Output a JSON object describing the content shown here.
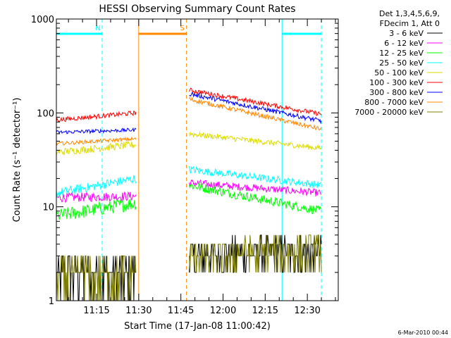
{
  "chart_data": {
    "type": "line",
    "title": "HESSI Observing Summary Count Rates",
    "xlabel": "Start Time (17-Jan-08 11:00:42)",
    "ylabel": "Count Rate (s⁻¹ detector⁻¹)",
    "y_scale": "log",
    "ylim": [
      1,
      1000
    ],
    "xlim_minutes_after_1100": [
      0.7,
      101
    ],
    "x_tick_labels": [
      "11:15",
      "11:30",
      "11:45",
      "12:00",
      "12:15",
      "12:30"
    ],
    "y_tick_labels": [
      "1",
      "10",
      "100",
      "1000"
    ],
    "legend_header": [
      "Det 1,3,4,5,6,9,",
      "FDecim 1, Att 0"
    ],
    "grid": false,
    "legend_placement": "top-right, outside plot",
    "flags": [
      {
        "letter": "N",
        "color": "#00ffff",
        "intervals": [
          [
            "11:00:42",
            "11:17"
          ],
          [
            "12:21",
            "12:35"
          ]
        ]
      },
      {
        "letter": "S",
        "color": "#ff8800",
        "intervals": [
          [
            "11:30",
            "11:47"
          ]
        ]
      }
    ],
    "flag_boundaries": [
      {
        "time": "11:17",
        "color": "#00ffff",
        "style": "dashed"
      },
      {
        "time": "11:30",
        "color": "#ff8800",
        "style": "solid"
      },
      {
        "time": "11:47",
        "color": "#ff8800",
        "style": "dashed"
      },
      {
        "time": "12:21",
        "color": "#00ffff",
        "style": "solid"
      },
      {
        "time": "12:35",
        "color": "#00ffff",
        "style": "dashed"
      }
    ],
    "series": [
      {
        "name": "3 - 6 keV",
        "color": "#000000",
        "segments": [
          {
            "x": [
              "11:00:42",
              "11:29"
            ],
            "y": [
              2,
              2
            ],
            "noise": 0.6,
            "kind": "stair"
          },
          {
            "x": [
              "11:48",
              "12:35"
            ],
            "y": [
              3,
              3.5
            ],
            "noise": 0.45,
            "kind": "stair"
          }
        ]
      },
      {
        "name": "6 - 12 keV",
        "color": "#ff00ff",
        "segments": [
          {
            "x": [
              "11:00:42",
              "11:29"
            ],
            "y": [
              12.5,
              13
            ],
            "noise": 0.1
          },
          {
            "x": [
              "11:48",
              "12:35"
            ],
            "y": [
              18,
              14
            ],
            "noise": 0.08
          }
        ]
      },
      {
        "name": "12 - 25 keV",
        "color": "#00ff00",
        "segments": [
          {
            "x": [
              "11:00:42",
              "11:29"
            ],
            "y": [
              8,
              11
            ],
            "noise": 0.15
          },
          {
            "x": [
              "11:48",
              "12:35"
            ],
            "y": [
              17,
              9
            ],
            "noise": 0.1
          }
        ]
      },
      {
        "name": "25 - 50 keV",
        "color": "#00ffff",
        "segments": [
          {
            "x": [
              "11:00:42",
              "11:29"
            ],
            "y": [
              14,
              20
            ],
            "noise": 0.1
          },
          {
            "x": [
              "11:48",
              "12:35"
            ],
            "y": [
              25,
              17
            ],
            "noise": 0.08
          }
        ]
      },
      {
        "name": "50 - 100 keV",
        "color": "#dddd00",
        "segments": [
          {
            "x": [
              "11:00:42",
              "11:29"
            ],
            "y": [
              38,
              46
            ],
            "noise": 0.08
          },
          {
            "x": [
              "11:48",
              "12:35"
            ],
            "y": [
              60,
              42
            ],
            "noise": 0.06
          }
        ]
      },
      {
        "name": "100 - 300 keV",
        "color": "#ff0000",
        "segments": [
          {
            "x": [
              "11:00:42",
              "11:29"
            ],
            "y": [
              84,
              100
            ],
            "noise": 0.05
          },
          {
            "x": [
              "11:48",
              "12:35"
            ],
            "y": [
              175,
              97
            ],
            "noise": 0.05
          }
        ]
      },
      {
        "name": "300 - 800 keV",
        "color": "#0000ff",
        "segments": [
          {
            "x": [
              "11:00:42",
              "11:29"
            ],
            "y": [
              62,
              66
            ],
            "noise": 0.04
          },
          {
            "x": [
              "11:48",
              "12:35"
            ],
            "y": [
              160,
              82
            ],
            "noise": 0.05
          }
        ]
      },
      {
        "name": "800 - 7000 keV",
        "color": "#ff8800",
        "segments": [
          {
            "x": [
              "11:00:42",
              "11:29"
            ],
            "y": [
              47,
              53
            ],
            "noise": 0.04
          },
          {
            "x": [
              "11:48",
              "12:35"
            ],
            "y": [
              140,
              67
            ],
            "noise": 0.05
          }
        ]
      },
      {
        "name": "7000 - 20000 keV",
        "color": "#808000",
        "segments": [
          {
            "x": [
              "11:00:42",
              "11:29"
            ],
            "y": [
              1.8,
              2
            ],
            "noise": 0.5,
            "kind": "stair"
          },
          {
            "x": [
              "11:48",
              "12:35"
            ],
            "y": [
              3,
              3.5
            ],
            "noise": 0.45,
            "kind": "stair"
          }
        ]
      }
    ]
  },
  "footer_date": "6-Mar-2010 00:44"
}
